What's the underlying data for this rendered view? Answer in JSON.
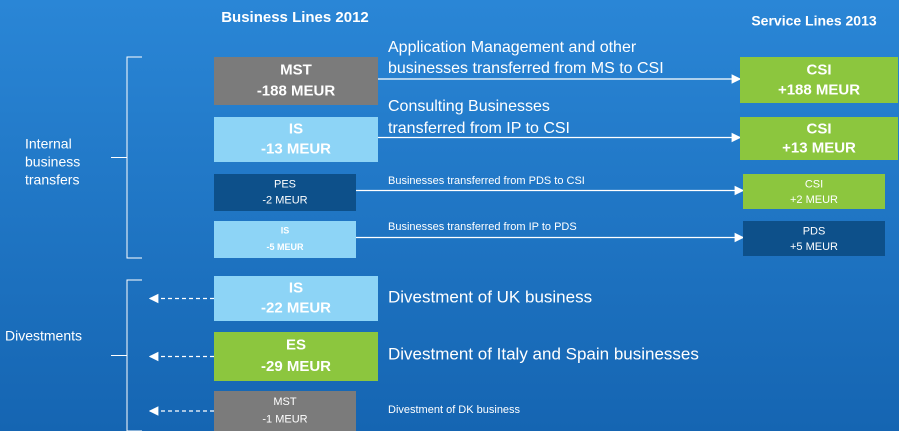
{
  "headers": {
    "left": "Business Lines 2012",
    "right": "Service Lines 2013"
  },
  "groups": [
    {
      "label": [
        "Internal",
        "business",
        "transfers"
      ],
      "rows": [
        {
          "source": {
            "name": "MST",
            "amount": "-188 MEUR",
            "color": "#7b7b7b"
          },
          "label": [
            "Application Management and other",
            "businesses transferred from MS to CSI"
          ],
          "target": {
            "name": "CSI",
            "amount": "+188 MEUR",
            "color": "#8cc63e"
          }
        },
        {
          "source": {
            "name": "IS",
            "amount": "-13 MEUR",
            "color": "#8dd4f6"
          },
          "label": [
            "Consulting Businesses",
            "transferred from IP to CSI"
          ],
          "target": {
            "name": "CSI",
            "amount": "+13 MEUR",
            "color": "#8cc63e"
          }
        },
        {
          "source": {
            "name": "PES",
            "amount": "-2 MEUR",
            "color": "#0d508a"
          },
          "label": [
            "Businesses transferred from PDS to CSI"
          ],
          "target": {
            "name": "CSI",
            "amount": "+2 MEUR",
            "color": "#8cc63e"
          }
        },
        {
          "source": {
            "name": "IS",
            "amount": "-5 MEUR",
            "color": "#8dd4f6"
          },
          "label": [
            "Businesses transferred from IP to PDS"
          ],
          "target": {
            "name": "PDS",
            "amount": "+5 MEUR",
            "color": "#0d508a"
          }
        }
      ]
    },
    {
      "label": [
        "Divestments"
      ],
      "rows": [
        {
          "source": {
            "name": "IS",
            "amount": "-22 MEUR",
            "color": "#8dd4f6"
          },
          "label": [
            "Divestment of UK business"
          ]
        },
        {
          "source": {
            "name": "ES",
            "amount": "-29 MEUR",
            "color": "#8cc63e"
          },
          "label": [
            "Divestment of Italy and Spain businesses"
          ]
        },
        {
          "source": {
            "name": "MST",
            "amount": "-1 MEUR",
            "color": "#7b7b7b"
          },
          "label": [
            "Divestment of DK business"
          ]
        }
      ]
    }
  ]
}
